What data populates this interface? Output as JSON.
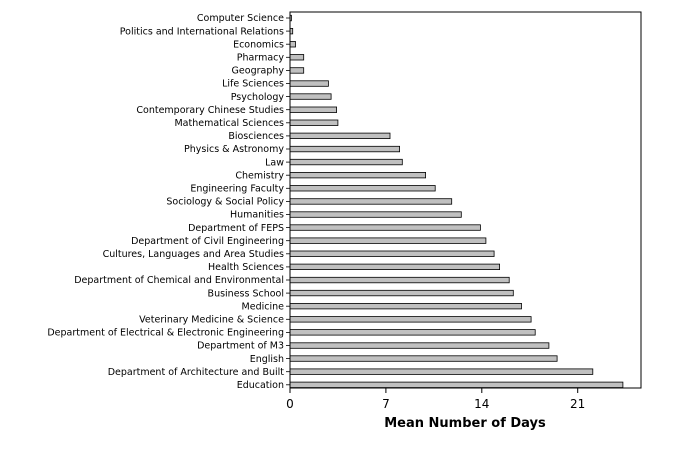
{
  "chart_data": {
    "type": "bar",
    "orientation": "horizontal",
    "title": "",
    "xlabel": "Mean Number of Days",
    "ylabel": "",
    "xlim": [
      0,
      25.5
    ],
    "xticks": [
      0,
      7,
      14,
      21
    ],
    "grid": false,
    "bar_color": "#c0c0c0",
    "categories": [
      "Computer Science",
      "Politics and International Relations",
      "Economics",
      "Pharmacy",
      "Geography",
      "Life Sciences",
      "Psychology",
      "Contemporary Chinese Studies",
      "Mathematical Sciences",
      "Biosciences",
      "Physics & Astronomy",
      "Law",
      "Chemistry",
      "Engineering Faculty",
      "Sociology & Social Policy",
      "Humanities",
      "Department of FEPS",
      "Department of Civil Engineering",
      "Cultures, Languages and Area Studies",
      "Health Sciences",
      "Department of Chemical and Environmental",
      "Business School",
      "Medicine",
      "Veterinary Medicine & Science",
      "Department of Electrical & Electronic Engineering",
      "Department of M3",
      "English",
      "Department of Architecture and Built",
      "Education"
    ],
    "values": [
      0.1,
      0.2,
      0.4,
      1.0,
      1.0,
      2.8,
      3.0,
      3.4,
      3.5,
      7.3,
      8.0,
      8.2,
      9.9,
      10.6,
      11.8,
      12.5,
      13.9,
      14.3,
      14.9,
      15.3,
      16.0,
      16.3,
      16.9,
      17.6,
      17.9,
      18.9,
      19.5,
      22.1,
      24.3
    ]
  }
}
